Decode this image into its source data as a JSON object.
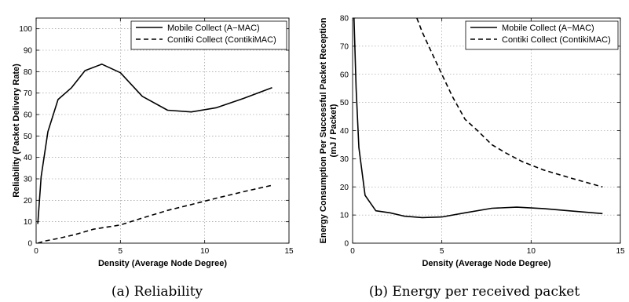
{
  "chart_data": [
    {
      "type": "line",
      "caption": "(a) Reliability",
      "xlabel": "Density (Average Node Degree)",
      "ylabel": "Reliability (Packet Delivery Rate)",
      "ylabel_lines": [
        "Reliability (Packet Delivery Rate)"
      ],
      "xlim": [
        0,
        15
      ],
      "ylim": [
        0,
        105
      ],
      "xticks": [
        0,
        5,
        10,
        15
      ],
      "xtick_labels": [
        "0",
        "5",
        "10",
        "15"
      ],
      "yticks": [
        0,
        10,
        20,
        30,
        40,
        50,
        60,
        70,
        80,
        90,
        100
      ],
      "ytick_labels": [
        "0",
        "10",
        "20",
        "30",
        "40",
        "50",
        "60",
        "70",
        "80",
        "90",
        "100"
      ],
      "grid": true,
      "legend_position": "top-right",
      "series": [
        {
          "name": "Mobile Collect (A−MAC)",
          "style": "solid",
          "x": [
            0.1,
            0.3,
            0.7,
            1.3,
            2.1,
            2.9,
            3.9,
            5.0,
            6.3,
            7.8,
            9.2,
            10.7,
            12.3,
            14.0
          ],
          "y": [
            9,
            31,
            52,
            67,
            72.5,
            80.5,
            83.5,
            79.5,
            68.5,
            62,
            61.2,
            63.2,
            67.5,
            72.5
          ]
        },
        {
          "name": "Contiki Collect (ContikiMAC)",
          "style": "dashed",
          "x": [
            0.1,
            0.5,
            1.3,
            2.3,
            3.4,
            5.0,
            6.2,
            7.8,
            9.2,
            10.7,
            12.3,
            14.0
          ],
          "y": [
            0,
            1,
            2.2,
            4,
            6.5,
            8.5,
            11.5,
            15.3,
            18,
            21,
            24,
            27
          ]
        }
      ]
    },
    {
      "type": "line",
      "caption": "(b) Energy per received packet",
      "xlabel": "Density (Average Node Degree)",
      "ylabel": "Energy Consumption Per Successful Packet Reception (mJ / Packet)",
      "ylabel_lines": [
        "Energy Consumption Per Successful Packet Reception",
        "(mJ / Packet)"
      ],
      "xlim": [
        0,
        15
      ],
      "ylim": [
        0,
        80
      ],
      "xticks": [
        0,
        5,
        10,
        15
      ],
      "xtick_labels": [
        "0",
        "5",
        "10",
        "15"
      ],
      "yticks": [
        0,
        10,
        20,
        30,
        40,
        50,
        60,
        70,
        80
      ],
      "ytick_labels": [
        "0",
        "10",
        "20",
        "30",
        "40",
        "50",
        "60",
        "70",
        "80"
      ],
      "grid": true,
      "legend_position": "top-right",
      "series": [
        {
          "name": "Mobile Collect (A−MAC)",
          "style": "solid",
          "x": [
            0.08,
            0.2,
            0.35,
            0.7,
            1.3,
            2.1,
            2.9,
            3.9,
            5.0,
            6.3,
            7.8,
            9.2,
            10.7,
            12.3,
            14.0
          ],
          "y": [
            80,
            55,
            34,
            17,
            11.5,
            10.8,
            9.6,
            9.1,
            9.3,
            10.8,
            12.4,
            12.8,
            12.3,
            11.4,
            10.5
          ]
        },
        {
          "name": "Contiki Collect (ContikiMAC)",
          "style": "dashed",
          "x": [
            3.6,
            3.9,
            4.3,
            5.0,
            5.6,
            6.3,
            7.0,
            7.8,
            8.6,
            9.5,
            10.7,
            12.3,
            14.0
          ],
          "y": [
            80,
            75,
            69.5,
            60,
            52,
            44,
            40,
            35,
            32,
            29,
            26,
            23,
            20
          ]
        }
      ]
    }
  ]
}
